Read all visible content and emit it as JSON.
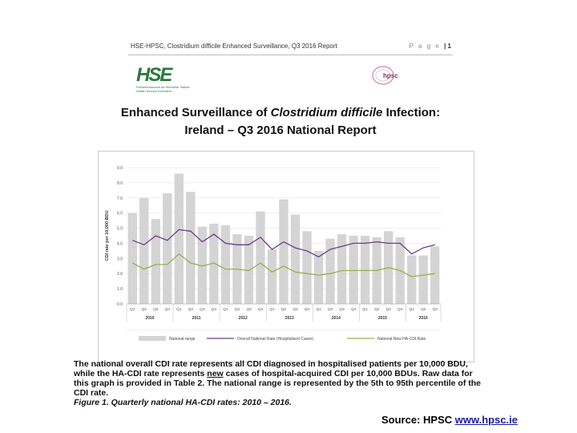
{
  "header": {
    "text": "HSE-HPSC, Clostridium difficile Enhanced Surveillance, Q3 2016 Report",
    "page_label": "P a g e",
    "page_number": "| 1"
  },
  "logos": {
    "hse_mark": "HSE",
    "hse_sub1": "Feidhmeannacht na Seirbhíse Sláinte",
    "hse_sub2": "Health Service Executive",
    "hpsc": "hpsc"
  },
  "title": {
    "line1_pre": "Enhanced Surveillance of ",
    "line1_italic": "Clostridium difficile",
    "line1_post": " Infection:",
    "line2": "Ireland – Q3 2016 National Report"
  },
  "caption": {
    "p1": "The national overall CDI rate represents all CDI diagnosed in hospitalised patients per 10,000 BDU, while the HA-CDI rate represents ",
    "p1_underline": "new",
    "p2": " cases of hospital-acquired CDI per 10,000 BDUs. Raw data for this graph is provided in Table 2. The national range is represented by the 5th to 95th percentile of the CDI rate.",
    "figure": "Figure 1. Quarterly national HA-CDI rates: 2010 – 2016."
  },
  "source": {
    "label": "Source: HPSC ",
    "link": "www.hpsc.ie"
  },
  "chart_data": {
    "type": "bar",
    "ylabel": "CDI rate per 10,000 BDU",
    "ylim": [
      0,
      9
    ],
    "yticks": [
      "0.0",
      "1.0",
      "2.0",
      "3.0",
      "4.0",
      "5.0",
      "6.0",
      "7.0",
      "8.0",
      "9.0"
    ],
    "categories": [
      "Q1",
      "Q2",
      "Q3",
      "Q4",
      "Q1",
      "Q2",
      "Q3",
      "Q4",
      "Q1",
      "Q2",
      "Q3",
      "Q4",
      "Q1",
      "Q2",
      "Q3",
      "Q4",
      "Q1",
      "Q2",
      "Q3",
      "Q4",
      "Q1",
      "Q2",
      "Q3",
      "Q4",
      "Q1",
      "Q2",
      "Q3"
    ],
    "years": [
      {
        "label": "2010",
        "span": 4
      },
      {
        "label": "2011",
        "span": 4
      },
      {
        "label": "2012",
        "span": 4
      },
      {
        "label": "2013",
        "span": 4
      },
      {
        "label": "2014",
        "span": 4
      },
      {
        "label": "2015",
        "span": 4
      },
      {
        "label": "2016",
        "span": 3
      }
    ],
    "series": [
      {
        "name": "National range",
        "kind": "bar",
        "color": "#d4d4d4",
        "values": [
          6.0,
          7.0,
          5.6,
          7.3,
          8.6,
          7.4,
          5.1,
          5.3,
          5.2,
          4.6,
          4.5,
          6.1,
          3.6,
          6.9,
          5.9,
          4.8,
          3.5,
          4.3,
          4.6,
          4.5,
          4.5,
          4.4,
          4.8,
          4.4,
          3.2,
          3.2,
          3.8
        ]
      },
      {
        "name": "Overall National Rate (Hospitalised Cases)",
        "kind": "line",
        "color": "#6a3d8a",
        "values": [
          4.2,
          3.9,
          4.5,
          4.2,
          4.9,
          4.8,
          4.1,
          4.6,
          4.0,
          3.9,
          3.9,
          4.4,
          3.6,
          4.1,
          3.7,
          3.5,
          3.1,
          3.6,
          3.8,
          4.0,
          4.0,
          4.1,
          4.0,
          4.0,
          3.3,
          3.7,
          3.9
        ]
      },
      {
        "name": "National New HA-CDI Rate",
        "kind": "line",
        "color": "#93b34a",
        "values": [
          2.7,
          2.3,
          2.6,
          2.6,
          3.3,
          2.7,
          2.5,
          2.7,
          2.3,
          2.3,
          2.2,
          2.7,
          2.1,
          2.5,
          2.1,
          2.0,
          1.9,
          2.0,
          2.2,
          2.2,
          2.2,
          2.2,
          2.4,
          2.2,
          1.8,
          1.9,
          2.0
        ]
      }
    ],
    "legend_position": "bottom",
    "grid": true
  }
}
